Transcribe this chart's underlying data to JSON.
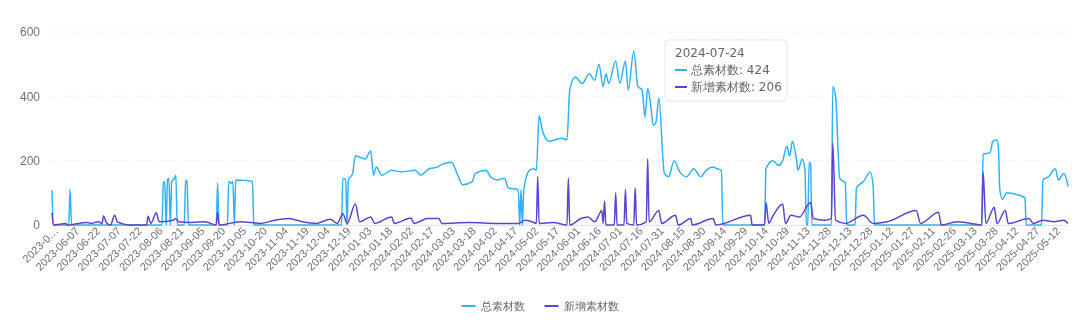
{
  "chart_data": {
    "type": "line",
    "xlim": [
      "2023-05-23",
      "2025-05-22"
    ],
    "ylim": [
      0,
      600
    ],
    "yticks": [
      0,
      200,
      400,
      600
    ],
    "grid": "y",
    "legend": "bottom",
    "xticks": [
      {
        "value": "2023-05-23",
        "label": "2023-0…"
      },
      "2023-06-07",
      "2023-06-22",
      "2023-07-07",
      "2023-07-22",
      "2023-08-06",
      "2023-08-21",
      "2023-09-05",
      "2023-09-20",
      "2023-10-05",
      "2023-10-20",
      "2023-11-04",
      "2023-11-19",
      "2023-12-04",
      "2023-12-19",
      "2024-01-03",
      "2024-01-18",
      "2024-02-02",
      "2024-02-17",
      "2024-03-03",
      "2024-03-18",
      "2024-04-02",
      "2024-04-17",
      "2024-05-02",
      "2024-05-17",
      "2024-06-01",
      "2024-06-16",
      "2024-07-01",
      "2024-07-16",
      "2024-07-31",
      "2024-08-15",
      "2024-08-30",
      "2024-09-14",
      "2024-09-29",
      "2024-10-14",
      "2024-10-29",
      "2024-11-13",
      "2024-11-28",
      "2024-12-13",
      "2024-12-28",
      "2025-01-12",
      "2025-01-27",
      "2025-02-11",
      "2025-02-26",
      "2025-03-13",
      "2025-03-28",
      "2025-04-12",
      "2025-04-27",
      "2025-05-12"
    ],
    "annotations": [
      "2024-07-24",
      "总素材数: 424",
      "新增素材数: 206"
    ],
    "series": [
      {
        "name": "总素材数",
        "color": "#33b1f6",
        "x": [
          "2023-05-23",
          "2023-05-24",
          "2023-06-04",
          "2023-06-05",
          "2023-06-06",
          "2023-08-10",
          "2023-08-11",
          "2023-08-12",
          "2023-08-13",
          "2023-08-14",
          "2023-08-15",
          "2023-08-16",
          "2023-08-17",
          "2023-08-19",
          "2023-08-20",
          "2023-08-21",
          "2023-08-26",
          "2023-08-27",
          "2023-08-28",
          "2023-08-29",
          "2023-09-18",
          "2023-09-19",
          "2023-09-20",
          "2023-09-26",
          "2023-09-27",
          "2023-09-29",
          "2023-09-30",
          "2023-10-01",
          "2023-10-02",
          "2023-10-10",
          "2023-10-14",
          "2023-10-15",
          "2023-12-17",
          "2023-12-18",
          "2023-12-20",
          "2023-12-21",
          "2023-12-22",
          "2023-12-25",
          "2023-12-27",
          "2024-01-03",
          "2024-01-07",
          "2024-01-09",
          "2024-01-11",
          "2024-01-15",
          "2024-01-22",
          "2024-01-29",
          "2024-02-08",
          "2024-02-12",
          "2024-02-18",
          "2024-02-24",
          "2024-02-28",
          "2024-03-05",
          "2024-03-10",
          "2024-03-13",
          "2024-03-20",
          "2024-03-22",
          "2024-03-30",
          "2024-04-02",
          "2024-04-07",
          "2024-04-12",
          "2024-04-15",
          "2024-04-22",
          "2024-04-23",
          "2024-04-24",
          "2024-04-25",
          "2024-04-26",
          "2024-04-30",
          "2024-05-03",
          "2024-05-05",
          "2024-05-07",
          "2024-05-09",
          "2024-05-14",
          "2024-05-23",
          "2024-05-27",
          "2024-05-29",
          "2024-06-02",
          "2024-06-07",
          "2024-06-12",
          "2024-06-16",
          "2024-06-19",
          "2024-06-22",
          "2024-06-24",
          "2024-06-26",
          "2024-07-01",
          "2024-07-04",
          "2024-07-08",
          "2024-07-10",
          "2024-07-14",
          "2024-07-17",
          "2024-07-20",
          "2024-07-22",
          "2024-07-24",
          "2024-07-26",
          "2024-07-28",
          "2024-07-30",
          "2024-08-01",
          "2024-08-05",
          "2024-08-08",
          "2024-08-12",
          "2024-08-16",
          "2024-08-21",
          "2024-08-26",
          "2024-08-31",
          "2024-09-04",
          "2024-09-09",
          "2024-09-12",
          "2024-09-15",
          "2024-09-16",
          "2024-10-16",
          "2024-10-17",
          "2024-10-22",
          "2024-10-26",
          "2024-10-29",
          "2024-11-01",
          "2024-11-03",
          "2024-11-05",
          "2024-11-08",
          "2024-11-09",
          "2024-11-12",
          "2024-11-14",
          "2024-11-15",
          "2024-11-16",
          "2024-11-17",
          "2024-11-18",
          "2024-11-19",
          "2024-12-03",
          "2024-12-04",
          "2024-12-06",
          "2024-12-09",
          "2024-12-13",
          "2024-12-14",
          "2024-12-20",
          "2024-12-21",
          "2024-12-26",
          "2024-12-31",
          "2025-01-02",
          "2025-01-03",
          "2025-03-21",
          "2025-03-22",
          "2025-03-27",
          "2025-03-29",
          "2025-04-01",
          "2025-04-02",
          "2025-04-03",
          "2025-04-05",
          "2025-04-08",
          "2025-04-15",
          "2025-04-21",
          "2025-04-22",
          "2025-05-03",
          "2025-05-04",
          "2025-05-08",
          "2025-05-13",
          "2025-05-15",
          "2025-05-19",
          "2025-05-21",
          "2025-05-22"
        ],
        "values": [
          108,
          0,
          0,
          110,
          0,
          0,
          130,
          135,
          0,
          140,
          145,
          0,
          135,
          145,
          155,
          0,
          0,
          140,
          135,
          0,
          0,
          130,
          0,
          0,
          135,
          130,
          135,
          0,
          140,
          138,
          135,
          0,
          0,
          145,
          140,
          0,
          140,
          160,
          215,
          205,
          230,
          155,
          180,
          155,
          170,
          165,
          170,
          155,
          175,
          180,
          190,
          195,
          150,
          125,
          135,
          160,
          170,
          150,
          140,
          145,
          115,
          110,
          0,
          110,
          0,
          110,
          170,
          175,
          170,
          340,
          300,
          260,
          270,
          265,
          420,
          460,
          440,
          470,
          450,
          500,
          430,
          470,
          440,
          510,
          440,
          510,
          420,
          540,
          430,
          420,
          335,
          424,
          380,
          310,
          320,
          395,
          160,
          150,
          200,
          165,
          150,
          175,
          150,
          170,
          180,
          175,
          170,
          0,
          0,
          175,
          200,
          185,
          200,
          245,
          215,
          260,
          200,
          170,
          205,
          170,
          0,
          0,
          195,
          190,
          0,
          0,
          430,
          400,
          145,
          130,
          0,
          0,
          115,
          135,
          165,
          120,
          0,
          0,
          220,
          225,
          260,
          265,
          240,
          110,
          80,
          100,
          95,
          85,
          0,
          0,
          140,
          150,
          175,
          140,
          160,
          140,
          120
        ]
      },
      {
        "name": "新增素材数",
        "color": "#5b45cd",
        "x": [
          "2023-05-23",
          "2023-05-24",
          "2023-06-02",
          "2023-06-03",
          "2023-06-17",
          "2023-06-20",
          "2023-06-25",
          "2023-06-28",
          "2023-06-29",
          "2023-07-01",
          "2023-07-04",
          "2023-07-07",
          "2023-07-09",
          "2023-07-12",
          "2023-07-17",
          "2023-07-30",
          "2023-07-31",
          "2023-08-02",
          "2023-08-06",
          "2023-08-08",
          "2023-08-18",
          "2023-08-20",
          "2023-08-22",
          "2023-08-31",
          "2023-09-10",
          "2023-09-18",
          "2023-09-19",
          "2023-09-20",
          "2023-10-05",
          "2023-10-20",
          "2023-10-30",
          "2023-11-09",
          "2023-11-19",
          "2023-11-29",
          "2023-12-09",
          "2023-12-14",
          "2023-12-18",
          "2023-12-21",
          "2023-12-27",
          "2023-12-30",
          "2024-01-07",
          "2024-01-10",
          "2024-01-22",
          "2024-01-24",
          "2024-02-05",
          "2024-02-07",
          "2024-02-17",
          "2024-02-25",
          "2024-02-27",
          "2024-03-18",
          "2024-04-07",
          "2024-04-22",
          "2024-04-27",
          "2024-05-02",
          "2024-05-05",
          "2024-05-06",
          "2024-05-07",
          "2024-05-17",
          "2024-05-27",
          "2024-05-28",
          "2024-05-29",
          "2024-06-06",
          "2024-06-11",
          "2024-06-16",
          "2024-06-20",
          "2024-06-21",
          "2024-06-22",
          "2024-06-23",
          "2024-06-24",
          "2024-06-30",
          "2024-07-01",
          "2024-07-02",
          "2024-07-07",
          "2024-07-08",
          "2024-07-09",
          "2024-07-14",
          "2024-07-15",
          "2024-07-16",
          "2024-07-23",
          "2024-07-24",
          "2024-07-25",
          "2024-08-01",
          "2024-08-03",
          "2024-08-13",
          "2024-08-15",
          "2024-08-24",
          "2024-08-25",
          "2024-09-09",
          "2024-09-11",
          "2024-10-06",
          "2024-10-07",
          "2024-10-16",
          "2024-10-17",
          "2024-10-19",
          "2024-10-21",
          "2024-10-29",
          "2024-10-31",
          "2024-11-04",
          "2024-11-10",
          "2024-11-18",
          "2024-11-20",
          "2024-11-28",
          "2024-12-03",
          "2024-12-04",
          "2024-12-06",
          "2024-12-13",
          "2024-12-26",
          "2025-01-02",
          "2025-01-12",
          "2025-02-02",
          "2025-02-05",
          "2025-02-18",
          "2025-02-20",
          "2025-03-03",
          "2025-03-13",
          "2025-03-21",
          "2025-03-22",
          "2025-03-24",
          "2025-03-30",
          "2025-04-01",
          "2025-04-07",
          "2025-04-09",
          "2025-04-24",
          "2025-04-27",
          "2025-05-04",
          "2025-05-12",
          "2025-05-19",
          "2025-05-22"
        ],
        "values": [
          38,
          0,
          5,
          0,
          8,
          5,
          10,
          5,
          28,
          8,
          0,
          30,
          10,
          5,
          0,
          0,
          27,
          5,
          38,
          10,
          15,
          20,
          10,
          8,
          10,
          0,
          40,
          0,
          10,
          5,
          15,
          20,
          10,
          5,
          18,
          5,
          35,
          5,
          65,
          10,
          25,
          5,
          25,
          5,
          22,
          5,
          20,
          20,
          5,
          8,
          5,
          5,
          15,
          10,
          5,
          150,
          5,
          8,
          0,
          145,
          0,
          20,
          25,
          10,
          40,
          45,
          5,
          75,
          0,
          0,
          100,
          0,
          0,
          110,
          5,
          0,
          115,
          0,
          10,
          206,
          10,
          45,
          5,
          30,
          0,
          20,
          0,
          20,
          0,
          30,
          0,
          0,
          70,
          5,
          20,
          65,
          5,
          30,
          25,
          70,
          20,
          15,
          20,
          255,
          15,
          5,
          30,
          5,
          10,
          45,
          5,
          40,
          0,
          10,
          5,
          0,
          165,
          5,
          55,
          5,
          45,
          5,
          20,
          5,
          15,
          10,
          15,
          5
        ]
      }
    ]
  }
}
